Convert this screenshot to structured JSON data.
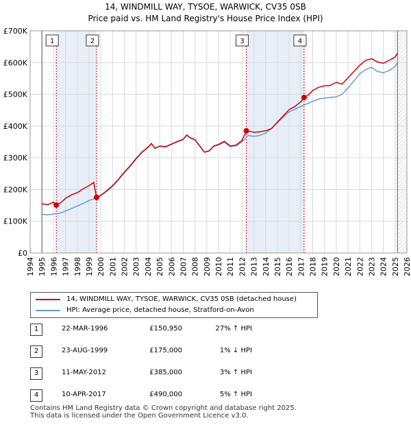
{
  "chart_data": {
    "type": "line",
    "title": "14, WINDMILL WAY, TYSOE, WARWICK, CV35 0SB",
    "subtitle": "Price paid vs. HM Land Registry's House Price Index (HPI)",
    "xlabel": "",
    "ylabel": "",
    "xlim": [
      1994,
      2026
    ],
    "ylim": [
      0,
      700000
    ],
    "y_ticks": [
      0,
      100000,
      200000,
      300000,
      400000,
      500000,
      600000,
      700000
    ],
    "y_tick_labels": [
      "£0",
      "£100K",
      "£200K",
      "£300K",
      "£400K",
      "£500K",
      "£600K",
      "£700K"
    ],
    "x_ticks": [
      1994,
      1995,
      1996,
      1997,
      1998,
      1999,
      2000,
      2001,
      2002,
      2003,
      2004,
      2005,
      2006,
      2007,
      2008,
      2009,
      2010,
      2011,
      2012,
      2013,
      2014,
      2015,
      2016,
      2017,
      2018,
      2019,
      2020,
      2021,
      2022,
      2023,
      2024,
      2025,
      2026
    ],
    "grid": true,
    "shaded_periods": [
      [
        1996.22,
        1999.64
      ],
      [
        2012.36,
        2017.27
      ]
    ],
    "series": [
      {
        "name": "14, WINDMILL WAY, TYSOE, WARWICK, CV35 0SB (detached house)",
        "color": "#cc0000",
        "x": [
          1995.0,
          1995.5,
          1996.0,
          1996.22,
          1996.6,
          1997.0,
          1997.5,
          1998.0,
          1998.5,
          1999.0,
          1999.4,
          1999.64,
          2000.0,
          2000.5,
          2001.0,
          2001.5,
          2002.0,
          2002.5,
          2003.0,
          2003.5,
          2004.0,
          2004.3,
          2004.6,
          2005.0,
          2005.5,
          2006.0,
          2006.5,
          2007.0,
          2007.3,
          2007.6,
          2008.0,
          2008.4,
          2008.8,
          2009.2,
          2009.6,
          2010.0,
          2010.5,
          2011.0,
          2011.5,
          2012.0,
          2012.36,
          2012.7,
          2013.0,
          2013.5,
          2014.0,
          2014.5,
          2015.0,
          2015.5,
          2016.0,
          2016.5,
          2017.0,
          2017.27,
          2017.6,
          2018.0,
          2018.5,
          2019.0,
          2019.5,
          2020.0,
          2020.5,
          2021.0,
          2021.5,
          2022.0,
          2022.5,
          2023.0,
          2023.5,
          2024.0,
          2024.5,
          2025.0,
          2025.2
        ],
        "y": [
          155000,
          152000,
          160000,
          150950,
          158000,
          172000,
          183000,
          190000,
          202000,
          212000,
          222000,
          175000,
          182000,
          196000,
          212000,
          232000,
          255000,
          275000,
          298000,
          318000,
          333000,
          345000,
          330000,
          337000,
          335000,
          343000,
          351000,
          358000,
          372000,
          363000,
          357000,
          338000,
          318000,
          322000,
          337000,
          342000,
          352000,
          337000,
          340000,
          355000,
          385000,
          383000,
          380000,
          382000,
          385000,
          392000,
          412000,
          432000,
          452000,
          462000,
          477000,
          490000,
          497000,
          512000,
          522000,
          527000,
          528000,
          538000,
          532000,
          552000,
          572000,
          592000,
          607000,
          612000,
          602000,
          598000,
          607000,
          617000,
          630000
        ]
      },
      {
        "name": "HPI: Average price, detached house, Stratford-on-Avon",
        "color": "#6699cc",
        "x": [
          1995.0,
          1995.5,
          1996.0,
          1996.5,
          1997.0,
          1997.5,
          1998.0,
          1998.5,
          1999.0,
          1999.5,
          2000.0,
          2000.5,
          2001.0,
          2001.5,
          2002.0,
          2002.5,
          2003.0,
          2003.5,
          2004.0,
          2004.3,
          2004.6,
          2005.0,
          2005.5,
          2006.0,
          2006.5,
          2007.0,
          2007.3,
          2007.6,
          2008.0,
          2008.4,
          2008.8,
          2009.2,
          2009.6,
          2010.0,
          2010.5,
          2011.0,
          2011.5,
          2012.0,
          2012.5,
          2013.0,
          2013.5,
          2014.0,
          2014.5,
          2015.0,
          2015.5,
          2016.0,
          2016.5,
          2017.0,
          2017.5,
          2018.0,
          2018.5,
          2019.0,
          2019.5,
          2020.0,
          2020.5,
          2021.0,
          2021.5,
          2022.0,
          2022.5,
          2023.0,
          2023.5,
          2024.0,
          2024.5,
          2025.0,
          2025.2
        ],
        "y": [
          122000,
          120000,
          123000,
          125000,
          132000,
          140000,
          148000,
          156000,
          165000,
          172000,
          180000,
          194000,
          210000,
          230000,
          253000,
          273000,
          296000,
          316000,
          332000,
          344000,
          329000,
          336000,
          334000,
          342000,
          350000,
          357000,
          371000,
          362000,
          356000,
          337000,
          317000,
          321000,
          336000,
          340000,
          349000,
          335000,
          338000,
          350000,
          370000,
          368000,
          370000,
          378000,
          392000,
          410000,
          428000,
          445000,
          453000,
          462000,
          470000,
          478000,
          485000,
          488000,
          490000,
          492000,
          500000,
          520000,
          542000,
          565000,
          578000,
          585000,
          572000,
          568000,
          575000,
          588000,
          600000
        ]
      }
    ],
    "markers": [
      {
        "label": "1",
        "x": 1996.22,
        "y": 150950
      },
      {
        "label": "2",
        "x": 1999.64,
        "y": 175000
      },
      {
        "label": "3",
        "x": 2012.36,
        "y": 385000
      },
      {
        "label": "4",
        "x": 2017.27,
        "y": 490000
      }
    ]
  },
  "legend": {
    "red_label": "14, WINDMILL WAY, TYSOE, WARWICK, CV35 0SB (detached house)",
    "blue_label": "HPI: Average price, detached house, Stratford-on-Avon",
    "red_color": "#cc0000",
    "blue_color": "#6699cc"
  },
  "sales": [
    {
      "num": "1",
      "date": "22-MAR-1996",
      "price": "£150,950",
      "hpi": "27% ↑ HPI"
    },
    {
      "num": "2",
      "date": "23-AUG-1999",
      "price": "£175,000",
      "hpi": "1% ↓ HPI"
    },
    {
      "num": "3",
      "date": "11-MAY-2012",
      "price": "£385,000",
      "hpi": "3% ↑ HPI"
    },
    {
      "num": "4",
      "date": "10-APR-2017",
      "price": "£490,000",
      "hpi": "5% ↑ HPI"
    }
  ],
  "footer": {
    "line1": "Contains HM Land Registry data © Crown copyright and database right 2025.",
    "line2": "This data is licensed under the Open Government Licence v3.0."
  }
}
